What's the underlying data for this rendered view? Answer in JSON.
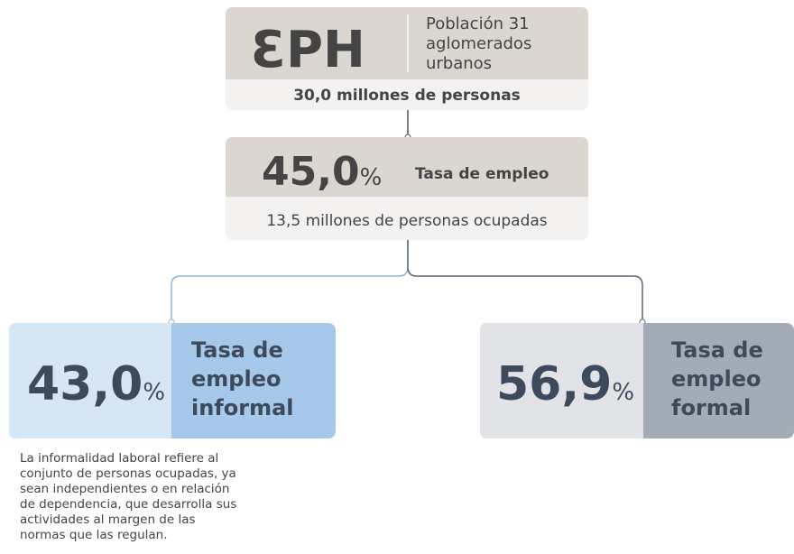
{
  "top": {
    "logo": "ƐPH",
    "description": [
      "Población 31",
      "aglomerados",
      "urbanos"
    ],
    "footer": "30,0 millones de personas"
  },
  "employment": {
    "value": "45,0",
    "unit": "%",
    "label": "Tasa de empleo",
    "footer": "13,5 millones de personas ocupadas"
  },
  "informal": {
    "value": "43,0",
    "unit": "%",
    "label": [
      "Tasa de",
      "empleo",
      "informal"
    ],
    "note": [
      "La informalidad laboral refiere al",
      "conjunto de personas ocupadas, ya",
      "sean independientes o en relación",
      "de dependencia, que desarrolla sus",
      "actividades al margen de las",
      "normas que las regulan."
    ]
  },
  "formal": {
    "value": "56,9",
    "unit": "%",
    "label": [
      "Tasa de",
      "empleo",
      "formal"
    ]
  }
}
